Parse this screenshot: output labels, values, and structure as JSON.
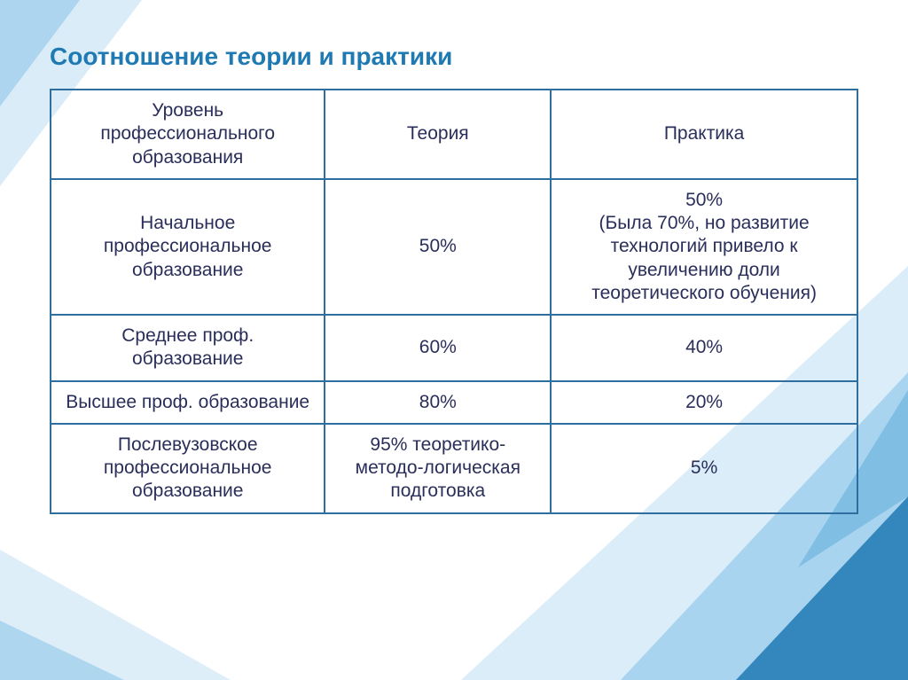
{
  "colors": {
    "title": "#1f79b3",
    "border": "#2f6f9f",
    "text": "#2a2e5a",
    "bg": "#ffffff",
    "deco_light": "#cfe7f5",
    "deco_mid": "#8fc6ea",
    "deco_dark": "#1f79b3"
  },
  "fontsize": {
    "title": 28,
    "cell": 21
  },
  "title": "Соотношение теории и практики",
  "table": {
    "column_widths_pct": [
      34,
      28,
      38
    ],
    "columns": [
      "Уровень профессионального образования",
      "Теория",
      "Практика"
    ],
    "rows": [
      [
        "Начальное профессиональное образование",
        "50%",
        "50%\n(Была 70%, но развитие технологий привело к увеличению доли теоретического обучения)"
      ],
      [
        "Среднее проф. образование",
        "60%",
        "40%"
      ],
      [
        "Высшее проф. образование",
        "80%",
        "20%"
      ],
      [
        "Послевузовское профессиональное образование",
        "95% теоретико-методо-логическая подготовка",
        "5%"
      ]
    ]
  }
}
